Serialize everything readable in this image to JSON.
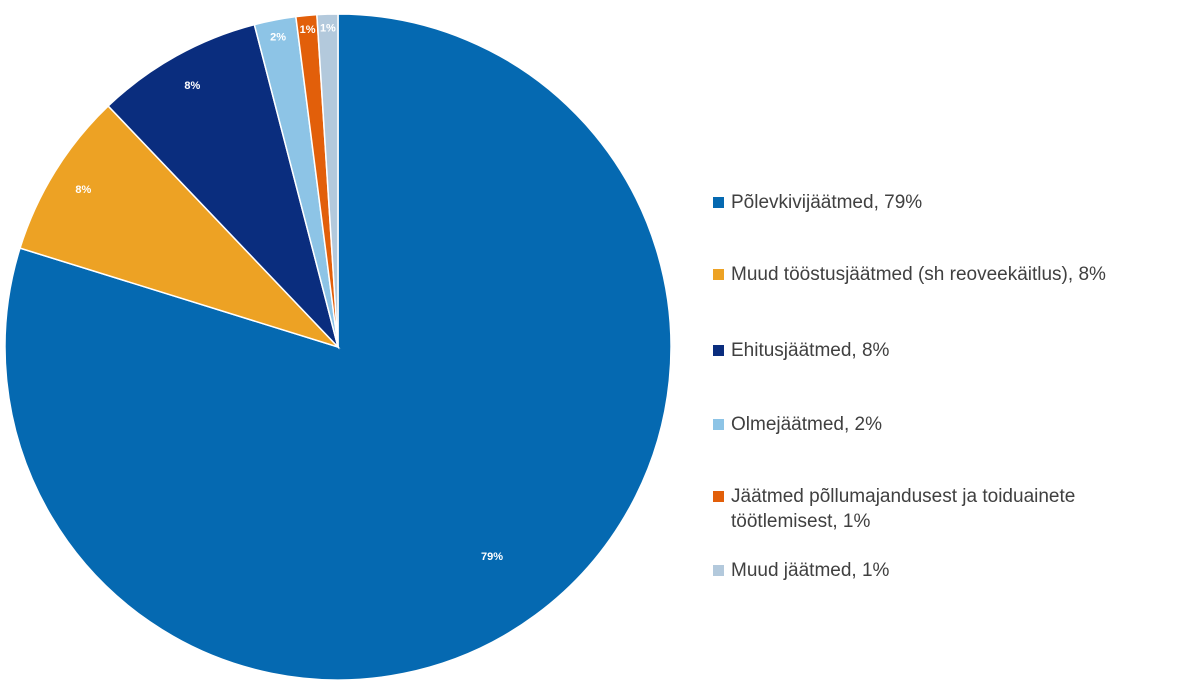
{
  "chart_data": {
    "type": "pie",
    "title": "",
    "slices": [
      {
        "label": "Põlevkivijäätmed",
        "value": 79,
        "display": "79%",
        "legend": "Põlevkivijäätmed, 79%",
        "color": "#0569b1"
      },
      {
        "label": "Muud tööstusjäätmed (sh reoveekäitlus)",
        "value": 8,
        "display": "8%",
        "legend": "Muud tööstusjäätmed (sh reoveekäitlus), 8%",
        "color": "#eda224"
      },
      {
        "label": "Ehitusjäätmed",
        "value": 8,
        "display": "8%",
        "legend": "Ehitusjäätmed, 8%",
        "color": "#0a2d7e"
      },
      {
        "label": "Olmejäätmed",
        "value": 2,
        "display": "2%",
        "legend": "Olmejäätmed, 2%",
        "color": "#8dc4e6"
      },
      {
        "label": "Jäätmed põllumajandusest ja toiduainete töötlemisest",
        "value": 1,
        "display": "1%",
        "legend": "Jäätmed põllumajandusest ja toiduainete töötlemisest, 1%",
        "color": "#e25f0a"
      },
      {
        "label": "Muud jäätmed",
        "value": 1,
        "display": "1%",
        "legend": "Muud jäätmed, 1%",
        "color": "#b3c9dc"
      }
    ],
    "legend_position": "right"
  }
}
